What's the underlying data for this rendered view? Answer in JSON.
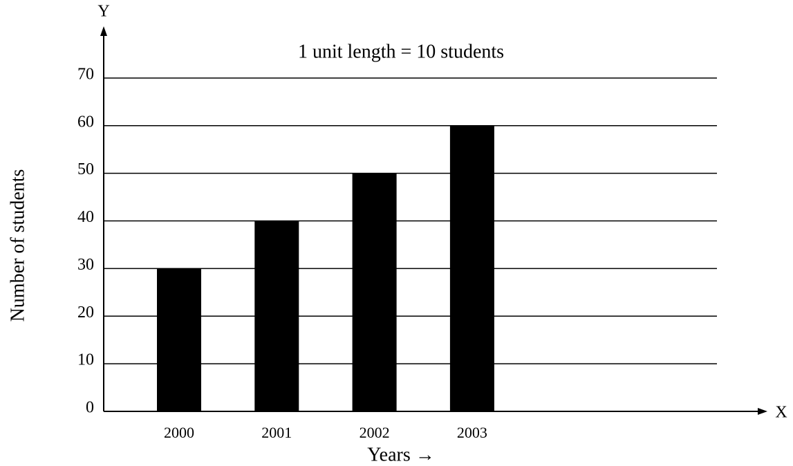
{
  "chart_data": {
    "type": "bar",
    "title": "1 unit length = 10 students",
    "x_label": "Years →",
    "y_label": "Number of students",
    "x_axis_name": "X",
    "y_axis_name": "Y",
    "categories": [
      "2000",
      "2001",
      "2002",
      "2003"
    ],
    "values": [
      30,
      40,
      50,
      60
    ],
    "color": "#000000",
    "ylim": [
      0,
      80
    ],
    "yticks": [
      0,
      10,
      20,
      30,
      40,
      50,
      60,
      70
    ],
    "grid": true
  }
}
